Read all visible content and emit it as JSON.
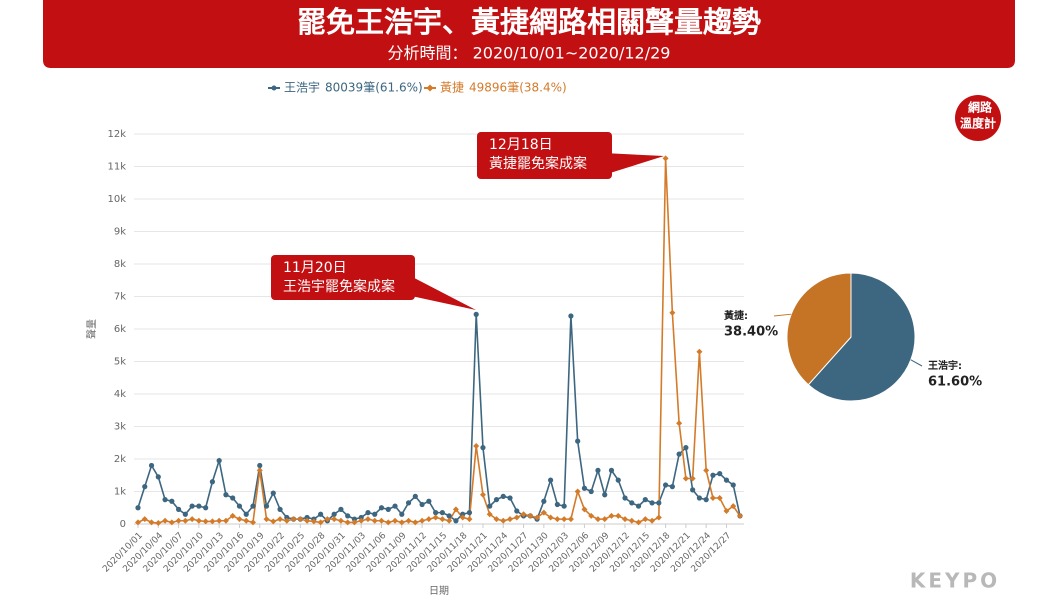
{
  "header": {
    "title": "罷免王浩宇、黃捷網路相關聲量趨勢",
    "subtitle": "分析時間： 2020/10/01~2020/12/29"
  },
  "logo": {
    "line1": "網路",
    "line2": "溫度計"
  },
  "footer": "KEYPO",
  "chart_data": [
    {
      "type": "line",
      "x_label": "日期",
      "y_label": "聲量",
      "categories": [
        "2020/10/01",
        null,
        null,
        "2020/10/04",
        null,
        null,
        "2020/10/07",
        null,
        null,
        "2020/10/10",
        null,
        null,
        "2020/10/13",
        null,
        null,
        "2020/10/16",
        null,
        null,
        "2020/10/19",
        null,
        null,
        "2020/10/22",
        null,
        null,
        "2020/10/25",
        null,
        null,
        "2020/10/28",
        null,
        null,
        "2020/10/31",
        null,
        null,
        "2020/11/03",
        null,
        null,
        "2020/11/06",
        null,
        null,
        "2020/11/09",
        null,
        null,
        "2020/11/12",
        null,
        null,
        "2020/11/15",
        null,
        null,
        "2020/11/18",
        null,
        null,
        "2020/11/21",
        null,
        null,
        "2020/11/24",
        null,
        null,
        "2020/11/27",
        null,
        null,
        "2020/11/30",
        null,
        null,
        "2020/12/03",
        null,
        null,
        "2020/12/06",
        null,
        null,
        "2020/12/09",
        null,
        null,
        "2020/12/12",
        null,
        null,
        "2020/12/15",
        null,
        null,
        "2020/12/18",
        null,
        null,
        "2020/12/21",
        null,
        null,
        "2020/12/24",
        null,
        null,
        "2020/12/27",
        null,
        null
      ],
      "series": [
        {
          "name": "王浩宇",
          "legend_note": "80039筆(61.6%)",
          "color": "#3d6680",
          "marker": "circle",
          "values": [
            500,
            1150,
            1800,
            1450,
            750,
            700,
            450,
            300,
            550,
            550,
            500,
            1300,
            1950,
            900,
            800,
            550,
            300,
            550,
            1800,
            550,
            950,
            450,
            200,
            150,
            150,
            200,
            150,
            300,
            100,
            300,
            450,
            250,
            150,
            200,
            350,
            300,
            500,
            450,
            550,
            300,
            650,
            850,
            600,
            700,
            350,
            350,
            250,
            100,
            300,
            350,
            6450,
            2350,
            550,
            750,
            850,
            800,
            400,
            250,
            250,
            150,
            700,
            1350,
            600,
            550,
            6400,
            2550,
            1100,
            1000,
            1650,
            900,
            1650,
            1350,
            800,
            650,
            550,
            750,
            650,
            650,
            1200,
            1150,
            2150,
            2350,
            1050,
            800,
            750,
            1500,
            1550,
            1350,
            1200,
            250
          ]
        },
        {
          "name": "黃捷",
          "legend_note": "49896筆(38.4%)",
          "color": "#d47b2a",
          "marker": "diamond",
          "values": [
            50,
            150,
            50,
            30,
            100,
            50,
            100,
            100,
            150,
            100,
            80,
            80,
            100,
            100,
            250,
            150,
            100,
            50,
            1650,
            150,
            80,
            150,
            100,
            150,
            150,
            100,
            80,
            50,
            150,
            150,
            100,
            50,
            50,
            100,
            150,
            100,
            100,
            50,
            100,
            50,
            100,
            50,
            100,
            150,
            200,
            150,
            100,
            450,
            200,
            150,
            2400,
            900,
            300,
            150,
            100,
            150,
            200,
            300,
            250,
            200,
            350,
            200,
            150,
            150,
            150,
            1000,
            450,
            250,
            150,
            150,
            250,
            250,
            150,
            100,
            50,
            150,
            100,
            200,
            11250,
            6500,
            3100,
            1400,
            1400,
            5300,
            1650,
            800,
            800,
            400,
            550,
            250
          ]
        }
      ],
      "ylim": [
        0,
        12000
      ],
      "yticks": [
        0,
        {
          "value": 1000,
          "label": "1k"
        },
        {
          "value": 2000,
          "label": "2k"
        },
        {
          "value": 3000,
          "label": "3k"
        },
        {
          "value": 4000,
          "label": "4k"
        },
        {
          "value": 5000,
          "label": "5k"
        },
        {
          "value": 6000,
          "label": "6k"
        },
        {
          "value": 7000,
          "label": "7k"
        },
        {
          "value": 8000,
          "label": "8k"
        },
        {
          "value": 9000,
          "label": "9k"
        },
        {
          "value": 10000,
          "label": "10k"
        },
        {
          "value": 11000,
          "label": "11k"
        },
        {
          "value": 12000,
          "label": "12k"
        }
      ],
      "grid": true,
      "annotations": [
        {
          "title": "11月20日",
          "text": "王浩宇罷免案成案"
        },
        {
          "title": "12月18日",
          "text": "黃捷罷免案成案"
        }
      ]
    },
    {
      "type": "pie",
      "categories": [
        "王浩宇:",
        "黃捷:"
      ],
      "values": [
        61.6,
        38.4
      ],
      "value_labels": [
        "61.60%",
        "38.40%"
      ],
      "colors": [
        "#3d6680",
        "#c47424"
      ]
    }
  ]
}
